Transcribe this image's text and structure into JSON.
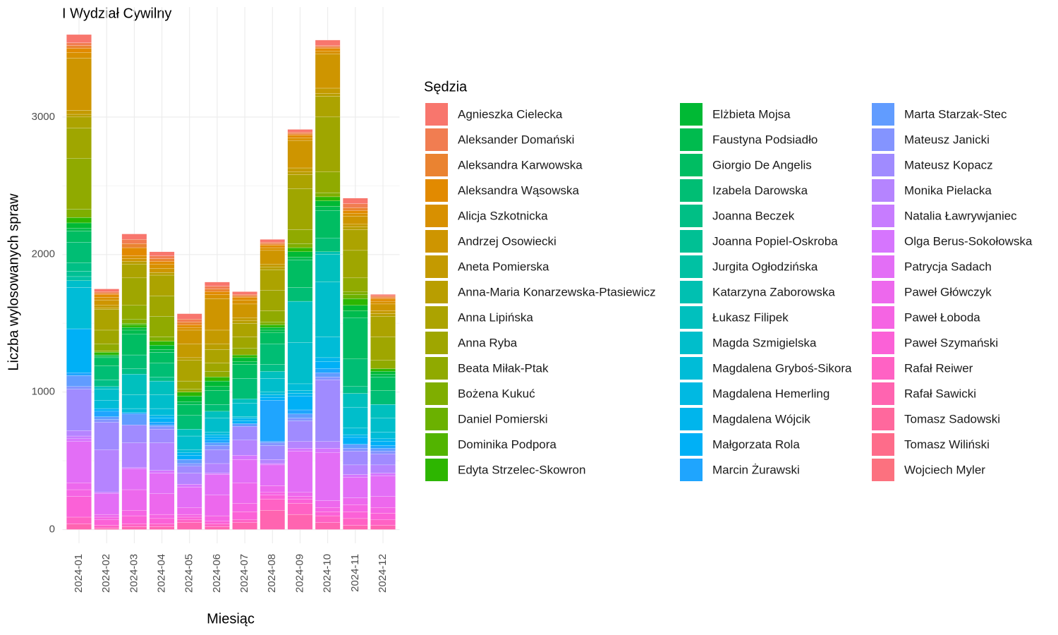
{
  "chart_data": {
    "type": "stacked_bar",
    "title": "I Wydział Cywilny",
    "xlabel": "Miesiąc",
    "ylabel": "Liczba wylosowanych spraw",
    "legend_title": "Sędzia",
    "legend": "right",
    "grid": true,
    "categories": [
      "2024-01",
      "2024-02",
      "2024-03",
      "2024-04",
      "2024-05",
      "2024-06",
      "2024-07",
      "2024-08",
      "2024-09",
      "2024-10",
      "2024-11",
      "2024-12"
    ],
    "ylim": [
      -100,
      3800
    ],
    "yticks": [
      0,
      1000,
      2000,
      3000
    ],
    "series": [
      {
        "name": "Agnieszka Cielecka",
        "color": "#F8766D",
        "values": [
          60,
          20,
          40,
          30,
          40,
          30,
          20,
          20,
          20,
          40,
          40,
          10
        ]
      },
      {
        "name": "Aleksander Domański",
        "color": "#F17D51",
        "values": [
          20,
          10,
          30,
          20,
          20,
          20,
          10,
          10,
          10,
          10,
          30,
          10
        ]
      },
      {
        "name": "Aleksandra Karwowska",
        "color": "#EA8331",
        "values": [
          20,
          10,
          30,
          20,
          20,
          20,
          10,
          10,
          10,
          10,
          20,
          10
        ]
      },
      {
        "name": "Aleksandra Wąsowska",
        "color": "#E28A00",
        "values": [
          30,
          20,
          60,
          20,
          20,
          20,
          20,
          20,
          20,
          20,
          20,
          20
        ]
      },
      {
        "name": "Alicja Szkotnicka",
        "color": "#D89000",
        "values": [
          40,
          20,
          20,
          30,
          20,
          30,
          30,
          20,
          20,
          20,
          20,
          20
        ]
      },
      {
        "name": "Andrzej Osowiecki",
        "color": "#CE9500",
        "values": [
          380,
          40,
          20,
          30,
          100,
          230,
          100,
          100,
          200,
          250,
          60,
          50
        ]
      },
      {
        "name": "Aneta Pomierska",
        "color": "#C49A00",
        "values": [
          30,
          20,
          0,
          0,
          100,
          100,
          20,
          20,
          30,
          40,
          20,
          20
        ]
      },
      {
        "name": "Anna-Maria Konarzewska-Ptasiewicz",
        "color": "#B99E00",
        "values": [
          20,
          10,
          20,
          20,
          20,
          40,
          20,
          20,
          20,
          20,
          20,
          20
        ]
      },
      {
        "name": "Anna Lipińska",
        "color": "#ACA300",
        "values": [
          80,
          150,
          100,
          150,
          150,
          100,
          100,
          150,
          100,
          150,
          150,
          150
        ]
      },
      {
        "name": "Anna Ryba",
        "color": "#9FA600",
        "values": [
          220,
          100,
          200,
          150,
          60,
          60,
          80,
          150,
          300,
          400,
          200,
          170
        ]
      },
      {
        "name": "Beata Miłak-Ptak",
        "color": "#90AA00",
        "values": [
          370,
          50,
          100,
          150,
          20,
          40,
          50,
          80,
          100,
          150,
          100,
          60
        ]
      },
      {
        "name": "Bożena Kukuć",
        "color": "#7FAE00",
        "values": [
          60,
          10,
          30,
          30,
          0,
          0,
          0,
          20,
          30,
          30,
          20,
          0
        ]
      },
      {
        "name": "Daniel Pomierski",
        "color": "#6BB100",
        "values": [
          0,
          0,
          0,
          0,
          0,
          0,
          0,
          0,
          0,
          0,
          30,
          0
        ]
      },
      {
        "name": "Dominika Podpora",
        "color": "#52B400",
        "values": [
          0,
          0,
          10,
          0,
          0,
          0,
          0,
          0,
          0,
          0,
          0,
          0
        ]
      },
      {
        "name": "Edyta Strzelec-Skowron",
        "color": "#2DB600",
        "values": [
          40,
          20,
          20,
          30,
          30,
          30,
          20,
          20,
          30,
          30,
          50,
          20
        ]
      },
      {
        "name": "Elżbieta Mojsa",
        "color": "#00B934",
        "values": [
          40,
          10,
          20,
          30,
          40,
          40,
          30,
          20,
          40,
          40,
          40,
          20
        ]
      },
      {
        "name": "Faustyna Podsiadło",
        "color": "#00BB4E",
        "values": [
          20,
          10,
          30,
          20,
          20,
          30,
          20,
          20,
          20,
          30,
          50,
          20
        ]
      },
      {
        "name": "Giorgio De Angelis",
        "color": "#00BD62",
        "values": [
          80,
          60,
          150,
          80,
          80,
          100,
          100,
          80,
          200,
          200,
          300,
          100
        ]
      },
      {
        "name": "Izabela Darowska",
        "color": "#00BE74",
        "values": [
          150,
          100,
          100,
          100,
          100,
          50,
          150,
          150,
          100,
          100,
          200,
          100
        ]
      },
      {
        "name": "Joanna Beczek",
        "color": "#00BF85",
        "values": [
          60,
          50,
          40,
          30,
          0,
          0,
          0,
          50,
          0,
          0,
          50,
          0
        ]
      },
      {
        "name": "Joanna Popiel-Oskroba",
        "color": "#00C094",
        "values": [
          40,
          0,
          0,
          0,
          0,
          0,
          0,
          0,
          0,
          0,
          0,
          0
        ]
      },
      {
        "name": "Jurgita Ogłodzińska",
        "color": "#00C1A3",
        "values": [
          30,
          0,
          0,
          0,
          0,
          0,
          0,
          0,
          0,
          0,
          0,
          0
        ]
      },
      {
        "name": "Katarzyna Zaborowska",
        "color": "#00C0B1",
        "values": [
          0,
          0,
          0,
          0,
          0,
          0,
          0,
          0,
          0,
          20,
          0,
          0
        ]
      },
      {
        "name": "Łukasz Filipek",
        "color": "#00C0BE",
        "values": [
          0,
          20,
          150,
          100,
          50,
          50,
          30,
          50,
          300,
          200,
          100,
          100
        ]
      },
      {
        "name": "Magda Szmigielska",
        "color": "#00BECB",
        "values": [
          50,
          80,
          100,
          100,
          100,
          100,
          100,
          100,
          300,
          400,
          150,
          100
        ]
      },
      {
        "name": "Magdalena Gryboś-Sikora",
        "color": "#00BCD7",
        "values": [
          300,
          60,
          30,
          50,
          20,
          20,
          10,
          20,
          50,
          150,
          50,
          50
        ]
      },
      {
        "name": "Magdalena Hemerling",
        "color": "#00B9E2",
        "values": [
          0,
          0,
          0,
          0,
          0,
          0,
          0,
          0,
          20,
          0,
          0,
          0
        ]
      },
      {
        "name": "Magdalena Wójcik",
        "color": "#00B5EC",
        "values": [
          0,
          0,
          0,
          20,
          20,
          20,
          20,
          20,
          20,
          30,
          20,
          20
        ]
      },
      {
        "name": "Małgorzata Rola",
        "color": "#00B0F6",
        "values": [
          320,
          20,
          0,
          30,
          30,
          20,
          20,
          20,
          100,
          50,
          50,
          30
        ]
      },
      {
        "name": "Marcin Żurawski",
        "color": "#1FA5FE",
        "values": [
          20,
          40,
          10,
          20,
          0,
          20,
          0,
          300,
          30,
          30,
          0,
          20
        ]
      },
      {
        "name": "Marta Starzak-Stec",
        "color": "#619CFF",
        "values": [
          80,
          20,
          80,
          10,
          30,
          20,
          20,
          10,
          30,
          30,
          30,
          20
        ]
      },
      {
        "name": "Mateusz Janicki",
        "color": "#8494FF",
        "values": [
          20,
          20,
          0,
          20,
          20,
          30,
          0,
          20,
          20,
          20,
          20,
          20
        ]
      },
      {
        "name": "Mateusz Kopacz",
        "color": "#A08BFF",
        "values": [
          300,
          200,
          130,
          100,
          50,
          100,
          100,
          100,
          150,
          450,
          100,
          80
        ]
      },
      {
        "name": "Monika Pielacka",
        "color": "#B584FF",
        "values": [
          40,
          310,
          180,
          200,
          80,
          70,
          110,
          30,
          50,
          50,
          70,
          60
        ]
      },
      {
        "name": "Natalia Ławrywjaniec",
        "color": "#C77CFF",
        "values": [
          20,
          0,
          0,
          0,
          0,
          0,
          0,
          0,
          0,
          0,
          0,
          0
        ]
      },
      {
        "name": "Olga Berus-Sokołowska",
        "color": "#D675FE",
        "values": [
          20,
          10,
          10,
          20,
          20,
          10,
          30,
          10,
          20,
          30,
          20,
          20
        ]
      },
      {
        "name": "Patrycja Sadach",
        "color": "#E36EF6",
        "values": [
          300,
          150,
          150,
          150,
          150,
          150,
          170,
          150,
          300,
          350,
          150,
          150
        ]
      },
      {
        "name": "Paweł Główczyk",
        "color": "#ED68ED",
        "values": [
          50,
          20,
          150,
          150,
          50,
          150,
          150,
          50,
          30,
          50,
          50,
          80
        ]
      },
      {
        "name": "Paweł Łoboda",
        "color": "#F564E3",
        "values": [
          50,
          20,
          40,
          30,
          20,
          40,
          60,
          20,
          20,
          30,
          50,
          40
        ]
      },
      {
        "name": "Paweł Szymański",
        "color": "#FB61D7",
        "values": [
          150,
          40,
          60,
          40,
          20,
          20,
          60,
          30,
          30,
          30,
          50,
          50
        ]
      },
      {
        "name": "Rafał Reiwer",
        "color": "#FF62C4",
        "values": [
          50,
          20,
          20,
          20,
          20,
          20,
          20,
          80,
          80,
          50,
          50,
          40
        ]
      },
      {
        "name": "Rafał Sawicki",
        "color": "#FF64B0",
        "values": [
          40,
          10,
          20,
          20,
          50,
          20,
          50,
          140,
          110,
          50,
          30,
          30
        ]
      },
      {
        "name": "Tomasz Sadowski",
        "color": "#FF689D",
        "values": [
          0,
          0,
          0,
          0,
          0,
          0,
          0,
          0,
          0,
          0,
          0,
          0
        ]
      },
      {
        "name": "Tomasz Wiliński",
        "color": "#FE6C8A",
        "values": [
          0,
          0,
          0,
          0,
          0,
          0,
          0,
          0,
          0,
          0,
          0,
          0
        ]
      },
      {
        "name": "Wojciech Myler",
        "color": "#FC717F",
        "values": [
          0,
          0,
          0,
          0,
          0,
          0,
          0,
          0,
          0,
          0,
          0,
          0
        ]
      }
    ]
  }
}
